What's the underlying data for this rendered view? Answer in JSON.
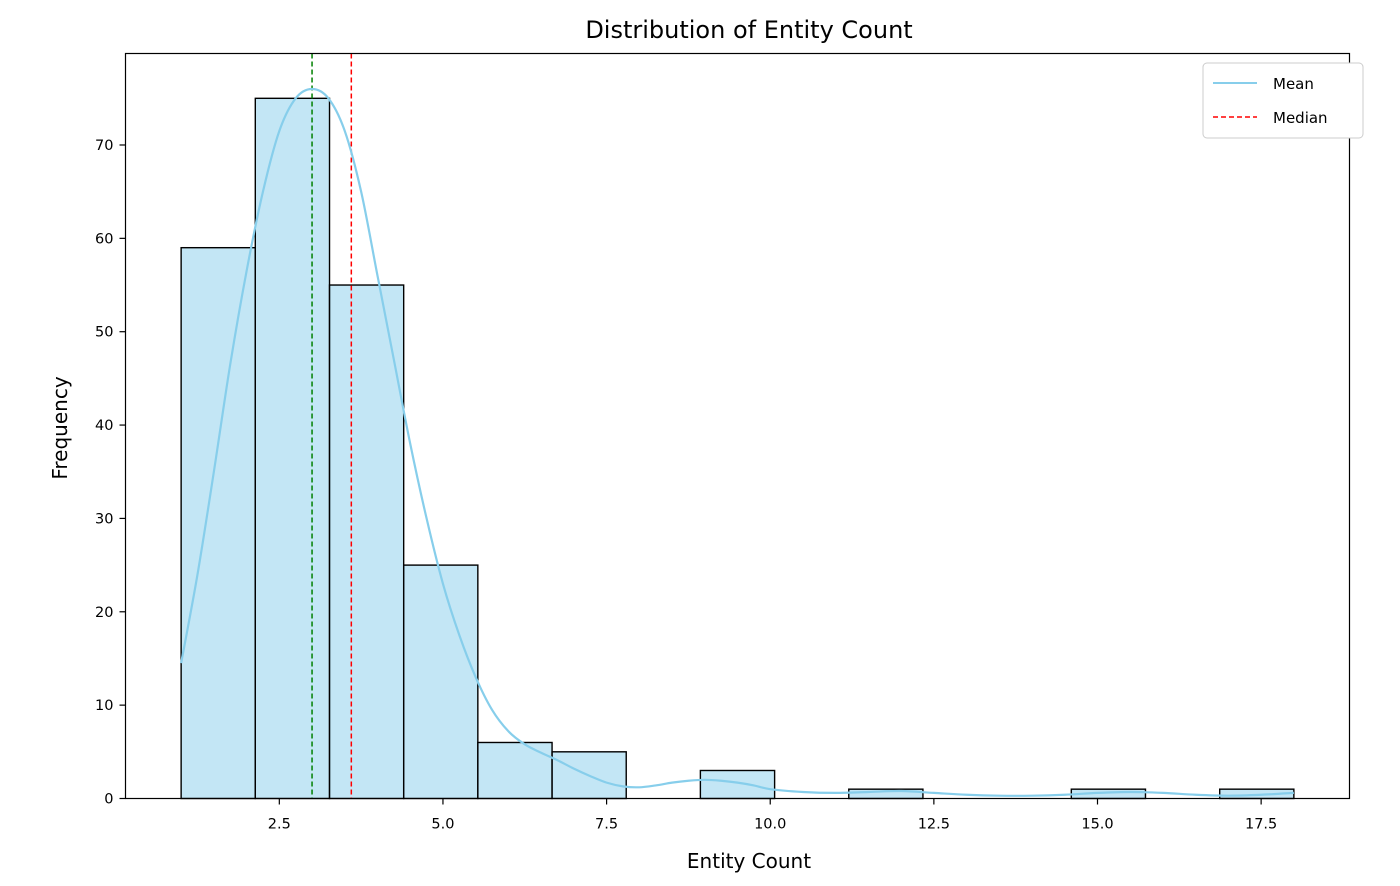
{
  "chart_data": {
    "type": "bar",
    "title": "Distribution of Entity Count",
    "xlabel": "Entity Count",
    "ylabel": "Frequency",
    "xlim": [
      0.15,
      18.85
    ],
    "ylim": [
      0,
      79.8
    ],
    "xticks": [
      2.5,
      5.0,
      7.5,
      10.0,
      12.5,
      15.0,
      17.5
    ],
    "xtick_labels": [
      "2.5",
      "5.0",
      "7.5",
      "10.0",
      "12.5",
      "15.0",
      "17.5"
    ],
    "yticks": [
      0,
      10,
      20,
      30,
      40,
      50,
      60,
      70
    ],
    "ytick_labels": [
      "0",
      "10",
      "20",
      "30",
      "40",
      "50",
      "60",
      "70"
    ],
    "grid": false,
    "legend_position": "top-right",
    "bins": {
      "edges": [
        1.0,
        2.133,
        3.267,
        4.4,
        5.533,
        6.667,
        7.8,
        8.933,
        10.067,
        11.2,
        12.333,
        13.467,
        14.6,
        15.733,
        16.867,
        18.0
      ],
      "counts": [
        59,
        75,
        55,
        25,
        6,
        5,
        0,
        3,
        0,
        1,
        0,
        0,
        1,
        0,
        1
      ]
    },
    "kde": {
      "x": [
        1.0,
        1.25,
        1.5,
        1.75,
        2.0,
        2.25,
        2.5,
        2.75,
        3.0,
        3.25,
        3.5,
        3.75,
        4.0,
        4.25,
        4.5,
        4.75,
        5.0,
        5.25,
        5.5,
        5.75,
        6.0,
        6.25,
        6.5,
        6.75,
        7.0,
        7.25,
        7.5,
        7.75,
        8.0,
        8.25,
        8.5,
        8.75,
        9.0,
        9.25,
        9.5,
        9.75,
        10.0,
        10.5,
        11.0,
        11.5,
        12.0,
        12.5,
        13.0,
        13.5,
        14.0,
        14.5,
        15.0,
        15.5,
        16.0,
        16.5,
        17.0,
        17.5,
        18.0
      ],
      "y": [
        14.5,
        24.0,
        35.0,
        46.5,
        56.5,
        65.0,
        71.5,
        75.0,
        76.0,
        75.0,
        71.5,
        65.0,
        56.0,
        47.0,
        38.0,
        30.0,
        23.0,
        17.5,
        13.0,
        9.5,
        7.2,
        5.8,
        4.9,
        4.1,
        3.2,
        2.4,
        1.7,
        1.3,
        1.2,
        1.4,
        1.7,
        1.9,
        2.0,
        1.9,
        1.7,
        1.4,
        1.0,
        0.7,
        0.6,
        0.7,
        0.8,
        0.6,
        0.4,
        0.3,
        0.3,
        0.4,
        0.6,
        0.7,
        0.6,
        0.4,
        0.3,
        0.4,
        0.6
      ]
    },
    "series": [
      {
        "name": "Mean",
        "style": "solid",
        "color": "#87ceeb"
      },
      {
        "name": "Median",
        "style": "dashed",
        "color": "#ff0000"
      }
    ],
    "vlines": [
      {
        "x": 3.6,
        "color": "#ff0000",
        "style": "dashed"
      },
      {
        "x": 3.0,
        "color": "#008000",
        "style": "dashed"
      }
    ],
    "colors": {
      "bar_fill": "#87ceeb",
      "bar_alpha": 0.5,
      "bar_edge": "#000000",
      "kde": "#87ceeb"
    }
  }
}
